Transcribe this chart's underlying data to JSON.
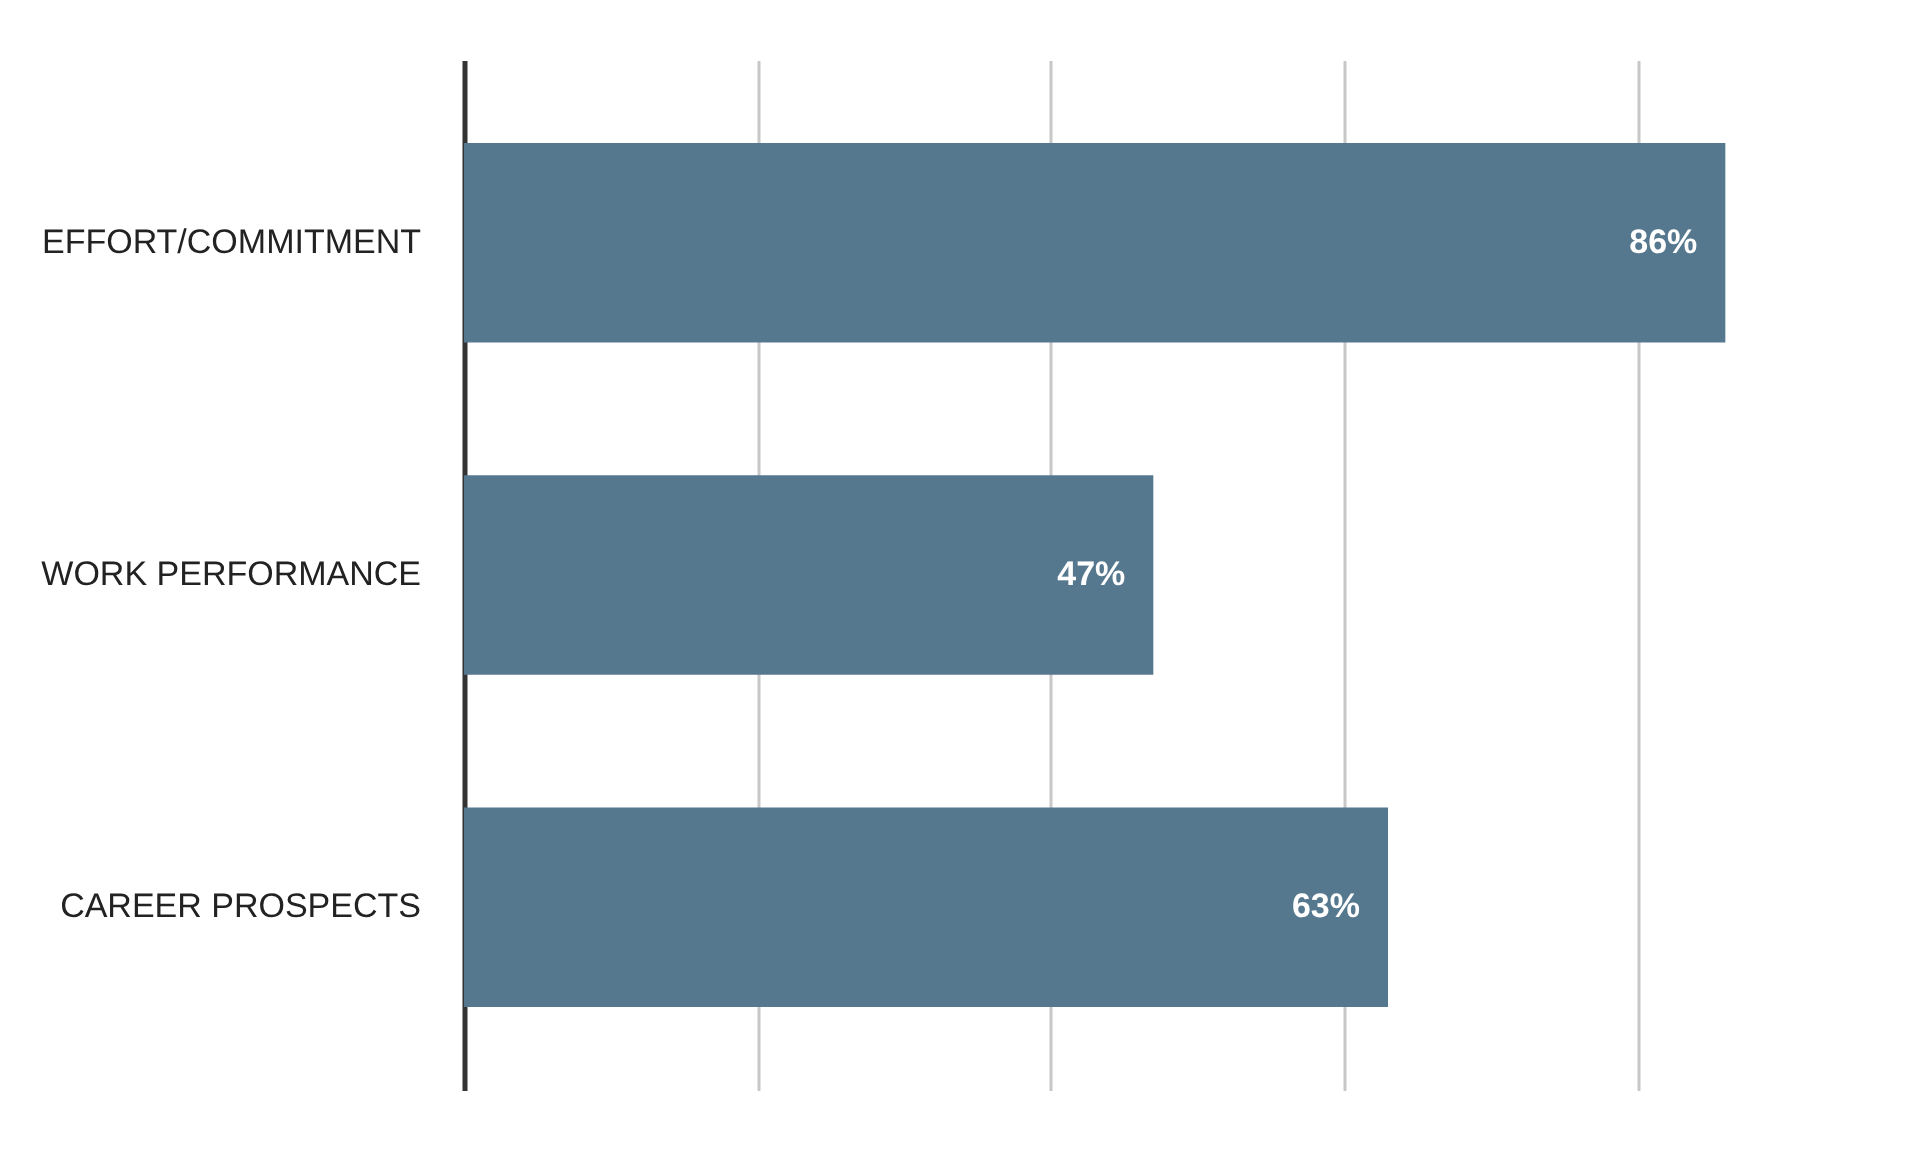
{
  "chart_data": {
    "type": "bar",
    "orientation": "horizontal",
    "categories": [
      "EFFORT/COMMITMENT",
      "WORK PERFORMANCE",
      "CAREER PROSPECTS"
    ],
    "values": [
      86,
      47,
      63
    ],
    "value_labels": [
      "86%",
      "47%",
      "63%"
    ],
    "color": "#56788f",
    "tick_labels": "y",
    "grid": "x"
  }
}
